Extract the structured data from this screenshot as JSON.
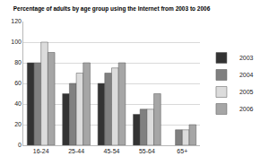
{
  "chart_data": {
    "type": "bar",
    "title": "Percentage of adults by age group using the Internet from 2003 to 2006",
    "categories": [
      "16-24",
      "25-44",
      "45-54",
      "55-64",
      "65+"
    ],
    "series": [
      {
        "name": "2003",
        "color": "#333333",
        "values": [
          80,
          50,
          60,
          30,
          null
        ]
      },
      {
        "name": "2004",
        "color": "#808080",
        "values": [
          80,
          60,
          70,
          35,
          15
        ]
      },
      {
        "name": "2005",
        "color": "#dcdcdc",
        "values": [
          100,
          70,
          75,
          35,
          15
        ]
      },
      {
        "name": "2006",
        "color": "#a6a6a6",
        "values": [
          90,
          80,
          80,
          50,
          20
        ]
      }
    ],
    "ylim": [
      0,
      120
    ],
    "yticks": [
      0,
      20,
      40,
      60,
      80,
      100,
      120
    ],
    "grid": true,
    "legend": "right"
  }
}
